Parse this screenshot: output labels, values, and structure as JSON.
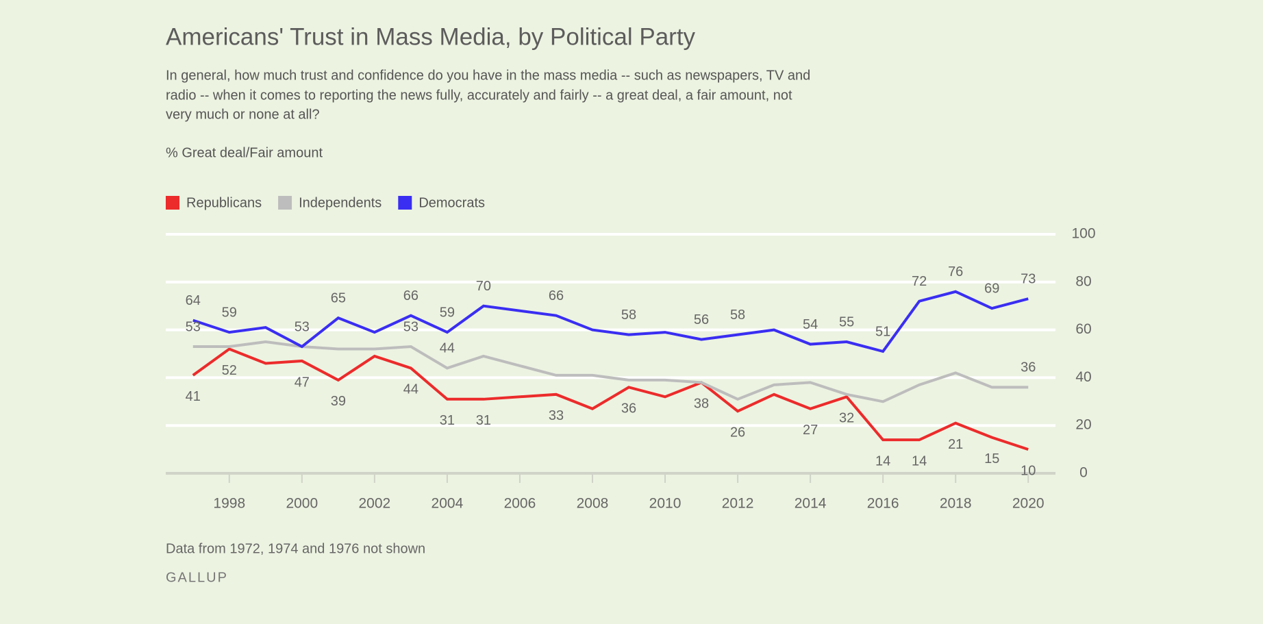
{
  "chart_data": {
    "type": "line",
    "title": "Americans' Trust in Mass Media, by Political Party",
    "subtitle": [
      "In general, how much trust and confidence do you have in the mass media -- such as newspapers, TV and",
      "radio -- when it comes to reporting the news fully, accurately and fairly -- a great deal, a fair amount, not",
      "very much or none at all?"
    ],
    "y_label": "% Great deal/Fair amount",
    "note": "Data from 1972, 1974 and 1976 not shown",
    "source": "GALLUP",
    "x": [
      1997,
      1998,
      1999,
      2000,
      2001,
      2002,
      2003,
      2004,
      2005,
      2007,
      2008,
      2009,
      2010,
      2011,
      2012,
      2013,
      2014,
      2015,
      2016,
      2017,
      2018,
      2019,
      2020
    ],
    "series": [
      {
        "name": "Republicans",
        "color": "#ec2b2b",
        "label_position": "below",
        "values": [
          41,
          52,
          46,
          47,
          39,
          49,
          44,
          31,
          31,
          33,
          27,
          36,
          32,
          38,
          26,
          33,
          27,
          32,
          14,
          14,
          21,
          15,
          10
        ],
        "data_labels": [
          41,
          52,
          null,
          47,
          39,
          null,
          44,
          31,
          31,
          33,
          null,
          36,
          null,
          38,
          26,
          null,
          27,
          32,
          14,
          14,
          21,
          15,
          10
        ]
      },
      {
        "name": "Independents",
        "color": "#bdbdbd",
        "label_position": "above",
        "values": [
          53,
          53,
          55,
          53,
          52,
          52,
          53,
          44,
          49,
          41,
          41,
          39,
          39,
          38,
          31,
          37,
          38,
          33,
          30,
          37,
          42,
          36,
          36
        ],
        "data_labels": [
          53,
          null,
          null,
          null,
          null,
          null,
          53,
          44,
          null,
          null,
          null,
          null,
          null,
          null,
          null,
          null,
          null,
          null,
          null,
          null,
          null,
          null,
          36
        ]
      },
      {
        "name": "Democrats",
        "color": "#3a2ef2",
        "label_position": "above",
        "values": [
          64,
          59,
          61,
          53,
          65,
          59,
          66,
          59,
          70,
          66,
          60,
          58,
          59,
          56,
          58,
          60,
          54,
          55,
          51,
          72,
          76,
          69,
          73
        ],
        "data_labels": [
          64,
          59,
          null,
          53,
          65,
          null,
          66,
          59,
          70,
          66,
          null,
          58,
          null,
          56,
          58,
          null,
          54,
          55,
          51,
          72,
          76,
          69,
          73
        ]
      }
    ],
    "xlim": [
      1996.25,
      2020.75
    ],
    "xticks": [
      1998,
      2000,
      2002,
      2004,
      2006,
      2008,
      2010,
      2012,
      2014,
      2016,
      2018,
      2020
    ],
    "ylim": [
      0,
      100
    ],
    "yticks": [
      0,
      20,
      40,
      60,
      80,
      100
    ],
    "grid": true,
    "legend": "top-left"
  }
}
